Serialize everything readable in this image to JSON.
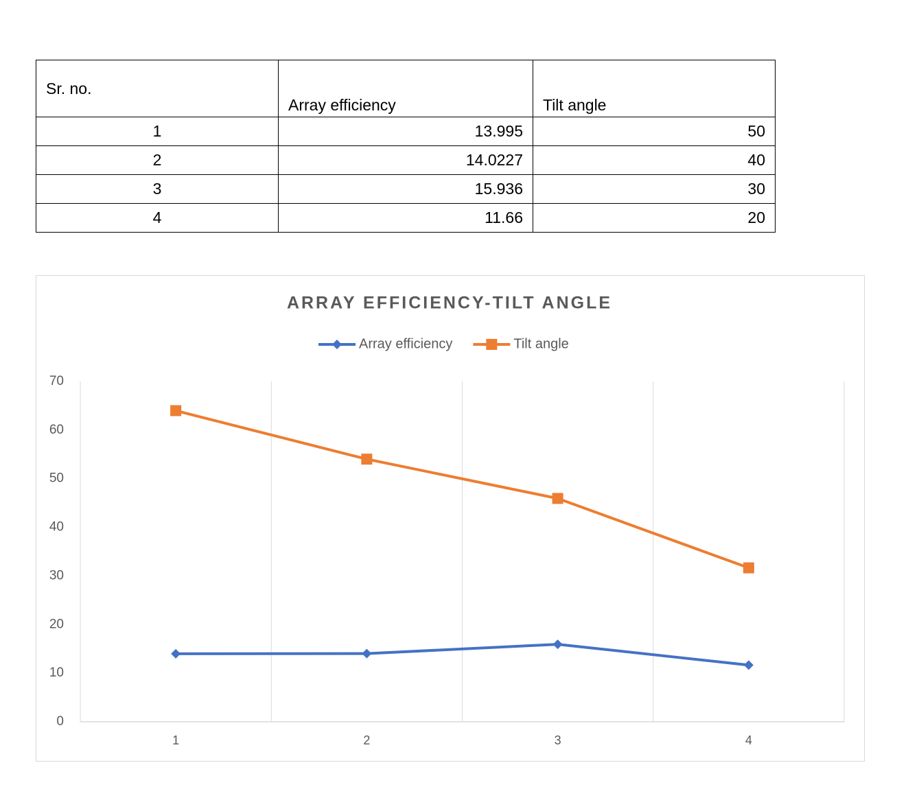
{
  "table": {
    "header": [
      "Sr. no.",
      "Array efficiency",
      "Tilt angle"
    ],
    "rows": [
      [
        1,
        13.995,
        50
      ],
      [
        2,
        14.0227,
        40
      ],
      [
        3,
        15.936,
        30
      ],
      [
        4,
        11.66,
        20
      ]
    ]
  },
  "chart_data": {
    "type": "line",
    "stacked": true,
    "title": "ARRAY EFFICIENCY-TILT ANGLE",
    "categories": [
      "1",
      "2",
      "3",
      "4"
    ],
    "series": [
      {
        "name": "Array efficiency",
        "color": "#4472c4",
        "marker": "diamond",
        "values": [
          13.995,
          14.0227,
          15.936,
          11.66
        ]
      },
      {
        "name": "Tilt angle",
        "color": "#ed7d31",
        "marker": "square",
        "values": [
          50,
          40,
          30,
          20
        ]
      }
    ],
    "ylim": [
      0,
      70
    ],
    "yticks": [
      0,
      10,
      20,
      30,
      40,
      50,
      60,
      70
    ],
    "grid": "vertical",
    "legend": "top"
  }
}
